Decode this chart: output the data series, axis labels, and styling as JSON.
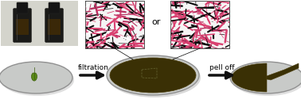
{
  "bg_color": "#ffffff",
  "photo_bg": "#d4d4cc",
  "bottle_dark": "#151515",
  "bottle_liquid": "#3a2808",
  "bottle_body": "#1a1a18",
  "nanowire_bg": "#f5f5f5",
  "nanowire_pink": "#d94070",
  "nanowire_black": "#0a0a0a",
  "nanowire_white": "#ffffff",
  "disk_face": "#c8cac8",
  "disk_edge": "#909090",
  "disk_edge2": "#b0b0b0",
  "film_dark": "#3a3005",
  "film_brown": "#4a3c0a",
  "leaf_green": "#5a8818",
  "leaf_dark": "#3a5c0a",
  "arrow_color": "#101010",
  "line_color": "#333333",
  "text_filtration": "filtration",
  "text_pell_off": "pell off",
  "text_or": "or",
  "figsize": [
    3.78,
    1.25
  ],
  "dpi": 100
}
